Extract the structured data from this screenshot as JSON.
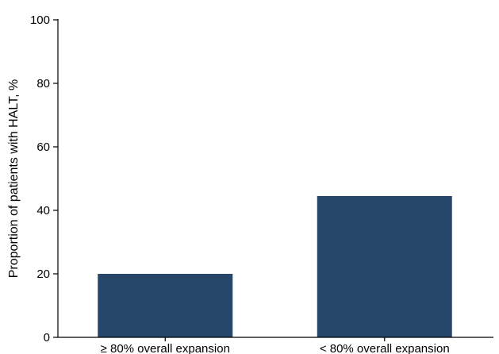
{
  "chart_data": {
    "type": "bar",
    "categories": [
      "≥ 80% overall expansion",
      "< 80% overall expansion"
    ],
    "values": [
      20,
      44.5
    ],
    "xlabel": "",
    "ylabel": "Proportion of patients with HALT, %",
    "ylim": [
      0,
      100
    ],
    "yticks": [
      0,
      20,
      40,
      60,
      80,
      100
    ],
    "grid": false,
    "legend": "none",
    "bar_color": "#27476a",
    "axis_color": "#000000"
  }
}
